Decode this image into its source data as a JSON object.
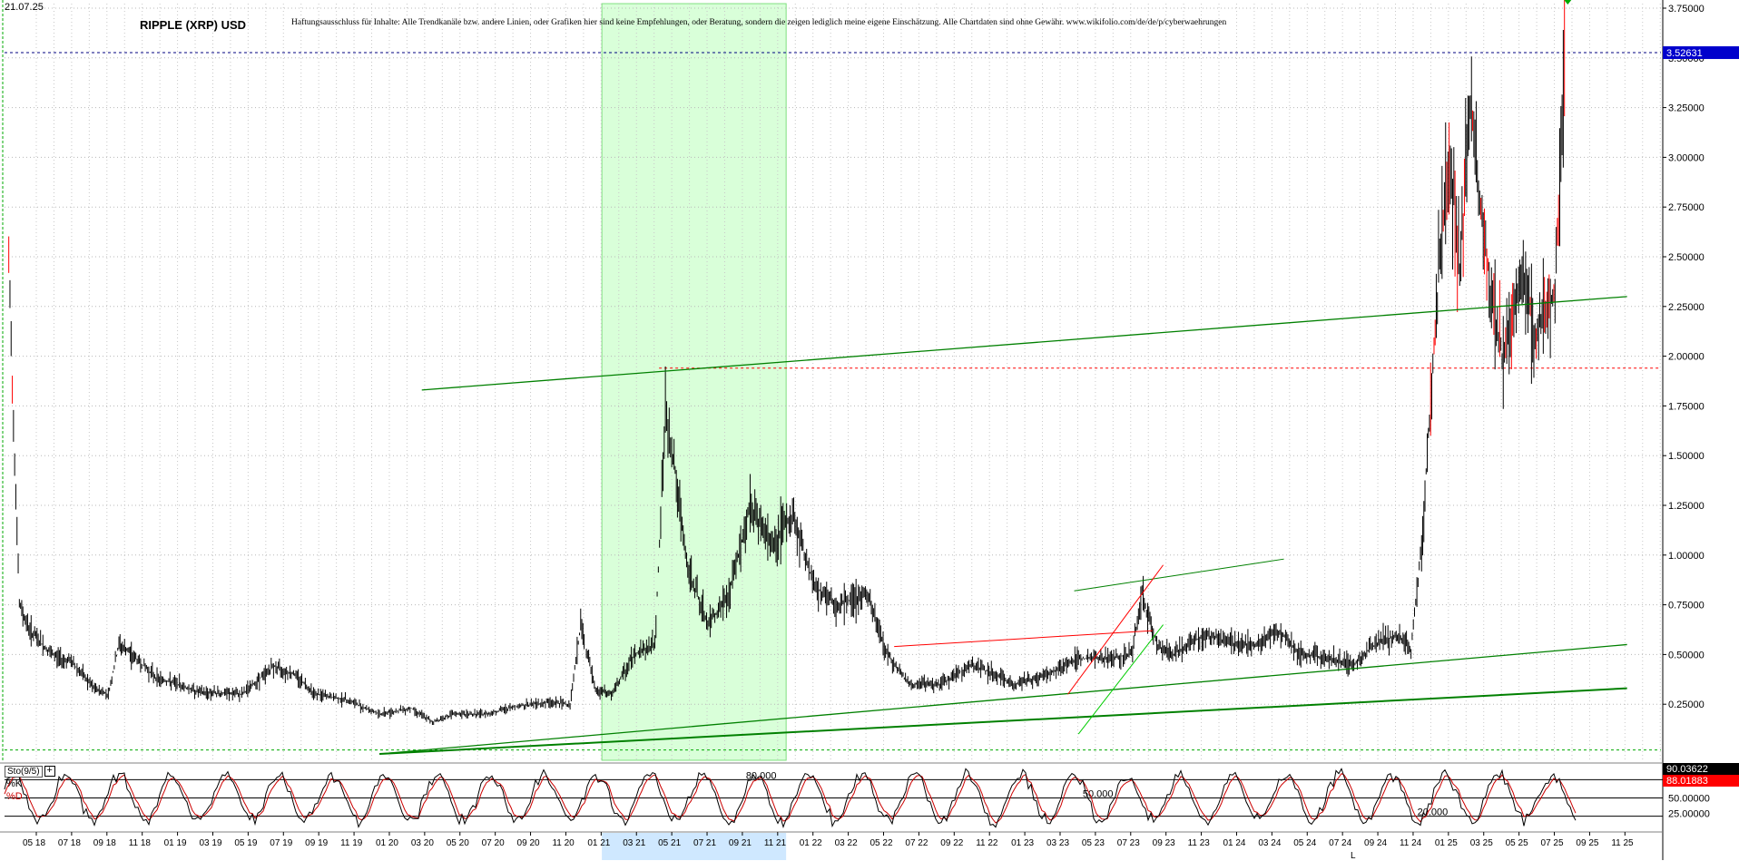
{
  "header": {
    "date": "21.07.25",
    "title": "RIPPLE (XRP) USD",
    "disclaimer": "Haftungsausschluss für Inhalte: Alle Trendkanäle bzw. andere Linien, oder Grafiken hier sind keine Empfehlungen, oder Beratung, sondern die zeigen lediglich meine eigene Einschätzung. Alle Chartdaten sind ohne Gewähr.  www.wikifolio.com/de/de/p/cyberwaehrungen"
  },
  "indicator": {
    "name": "Sto(9/5)",
    "k_label": "%K",
    "d_label": "%D",
    "level_labels": [
      "80.000",
      "50.000",
      "20.000"
    ],
    "right_values": {
      "k": "88.01883",
      "d": "90.03622"
    },
    "scale": [
      "50.00000",
      "25.00000"
    ]
  },
  "current_price_label": "3.52631",
  "bottom_right_letter": "L",
  "colors": {
    "candle": "#000000",
    "accent": "#0000cc",
    "trend_green": "#008000",
    "resistance_red": "#ff0000",
    "k_line": "#000000",
    "d_line": "#cc0000",
    "highlight": "#d9ffd9"
  },
  "chart_data": {
    "type": "candlestick",
    "title": "RIPPLE (XRP) USD",
    "y_axis_ticks": [
      "3.75000",
      "3.50000",
      "3.25000",
      "3.00000",
      "2.75000",
      "2.50000",
      "2.25000",
      "2.00000",
      "1.75000",
      "1.50000",
      "1.25000",
      "1.00000",
      "0.75000",
      "0.50000",
      "0.25000"
    ],
    "x_axis_labels": [
      "05 18",
      "07 18",
      "09 18",
      "11 18",
      "01 19",
      "03 19",
      "05 19",
      "07 19",
      "09 19",
      "11 19",
      "01 20",
      "03 20",
      "05 20",
      "07 20",
      "09 20",
      "11 20",
      "01 21",
      "03 21",
      "05 21",
      "07 21",
      "09 21",
      "11 21",
      "01 22",
      "03 22",
      "05 22",
      "07 22",
      "09 22",
      "11 22",
      "01 23",
      "03 23",
      "05 23",
      "07 23",
      "09 23",
      "11 23",
      "01 24",
      "03 24",
      "05 24",
      "07 24",
      "09 24",
      "11 24",
      "01 25",
      "03 25",
      "05 25",
      "07 25",
      "09 25",
      "11 25"
    ],
    "ylim": [
      0.0,
      3.75
    ],
    "price_path": [
      [
        2018.2,
        2.45
      ],
      [
        2018.25,
        0.75
      ],
      [
        2018.3,
        0.62
      ],
      [
        2018.4,
        0.5
      ],
      [
        2018.5,
        0.46
      ],
      [
        2018.6,
        0.33
      ],
      [
        2018.67,
        0.3
      ],
      [
        2018.72,
        0.55
      ],
      [
        2018.8,
        0.48
      ],
      [
        2018.9,
        0.38
      ],
      [
        2019.0,
        0.35
      ],
      [
        2019.1,
        0.31
      ],
      [
        2019.3,
        0.3
      ],
      [
        2019.45,
        0.44
      ],
      [
        2019.55,
        0.4
      ],
      [
        2019.65,
        0.3
      ],
      [
        2019.8,
        0.27
      ],
      [
        2019.95,
        0.2
      ],
      [
        2020.1,
        0.23
      ],
      [
        2020.2,
        0.16
      ],
      [
        2020.3,
        0.2
      ],
      [
        2020.45,
        0.2
      ],
      [
        2020.6,
        0.24
      ],
      [
        2020.75,
        0.26
      ],
      [
        2020.85,
        0.25
      ],
      [
        2020.9,
        0.65
      ],
      [
        2020.97,
        0.32
      ],
      [
        2021.05,
        0.3
      ],
      [
        2021.15,
        0.5
      ],
      [
        2021.25,
        0.55
      ],
      [
        2021.3,
        1.7
      ],
      [
        2021.33,
        1.55
      ],
      [
        2021.4,
        0.95
      ],
      [
        2021.5,
        0.65
      ],
      [
        2021.6,
        0.8
      ],
      [
        2021.7,
        1.25
      ],
      [
        2021.8,
        1.05
      ],
      [
        2021.9,
        1.2
      ],
      [
        2022.0,
        0.85
      ],
      [
        2022.1,
        0.75
      ],
      [
        2022.25,
        0.8
      ],
      [
        2022.35,
        0.5
      ],
      [
        2022.45,
        0.35
      ],
      [
        2022.6,
        0.35
      ],
      [
        2022.75,
        0.45
      ],
      [
        2022.85,
        0.4
      ],
      [
        2022.95,
        0.35
      ],
      [
        2023.1,
        0.4
      ],
      [
        2023.25,
        0.48
      ],
      [
        2023.4,
        0.48
      ],
      [
        2023.5,
        0.5
      ],
      [
        2023.55,
        0.8
      ],
      [
        2023.62,
        0.55
      ],
      [
        2023.7,
        0.5
      ],
      [
        2023.85,
        0.6
      ],
      [
        2024.0,
        0.55
      ],
      [
        2024.1,
        0.55
      ],
      [
        2024.2,
        0.62
      ],
      [
        2024.3,
        0.5
      ],
      [
        2024.45,
        0.48
      ],
      [
        2024.55,
        0.45
      ],
      [
        2024.65,
        0.55
      ],
      [
        2024.75,
        0.6
      ],
      [
        2024.82,
        0.52
      ],
      [
        2024.87,
        1.05
      ],
      [
        2024.95,
        2.4
      ],
      [
        2025.0,
        3.05
      ],
      [
        2025.05,
        2.4
      ],
      [
        2025.1,
        3.3
      ],
      [
        2025.15,
        2.7
      ],
      [
        2025.2,
        2.3
      ],
      [
        2025.25,
        2.0
      ],
      [
        2025.3,
        2.2
      ],
      [
        2025.35,
        2.45
      ],
      [
        2025.4,
        2.1
      ],
      [
        2025.45,
        2.25
      ],
      [
        2025.5,
        2.3
      ],
      [
        2025.55,
        3.55
      ]
    ],
    "horizontal_lines": [
      {
        "value": 3.52631,
        "style": "dashed",
        "color": "#000080"
      },
      {
        "value": 1.94,
        "style": "dashed",
        "color": "#ff0000"
      },
      {
        "value": 0.02,
        "style": "dashed",
        "color": "#00aa00"
      }
    ],
    "trend_lines": [
      {
        "color": "#008000",
        "from": [
          2020.15,
          1.83
        ],
        "to": [
          2025.84,
          2.3
        ]
      },
      {
        "color": "#008000",
        "from": [
          2019.95,
          0.0
        ],
        "to": [
          2025.84,
          0.33
        ]
      },
      {
        "color": "#008000",
        "from": [
          2019.95,
          0.0
        ],
        "to": [
          2025.84,
          0.55
        ]
      },
      {
        "color": "#008000",
        "from": [
          2023.23,
          0.82
        ],
        "to": [
          2024.22,
          0.98
        ]
      },
      {
        "color": "#ff0000",
        "from": [
          2022.38,
          0.54
        ],
        "to": [
          2023.6,
          0.62
        ]
      },
      {
        "color": "#ff0000",
        "from": [
          2023.2,
          0.3
        ],
        "to": [
          2023.65,
          0.95
        ]
      },
      {
        "color": "#00cc00",
        "from": [
          2023.25,
          0.1
        ],
        "to": [
          2023.65,
          0.65
        ]
      }
    ],
    "highlight_range": {
      "from": 2021.0,
      "to": 2021.87
    },
    "stochastic_levels": [
      80,
      50,
      20
    ]
  }
}
